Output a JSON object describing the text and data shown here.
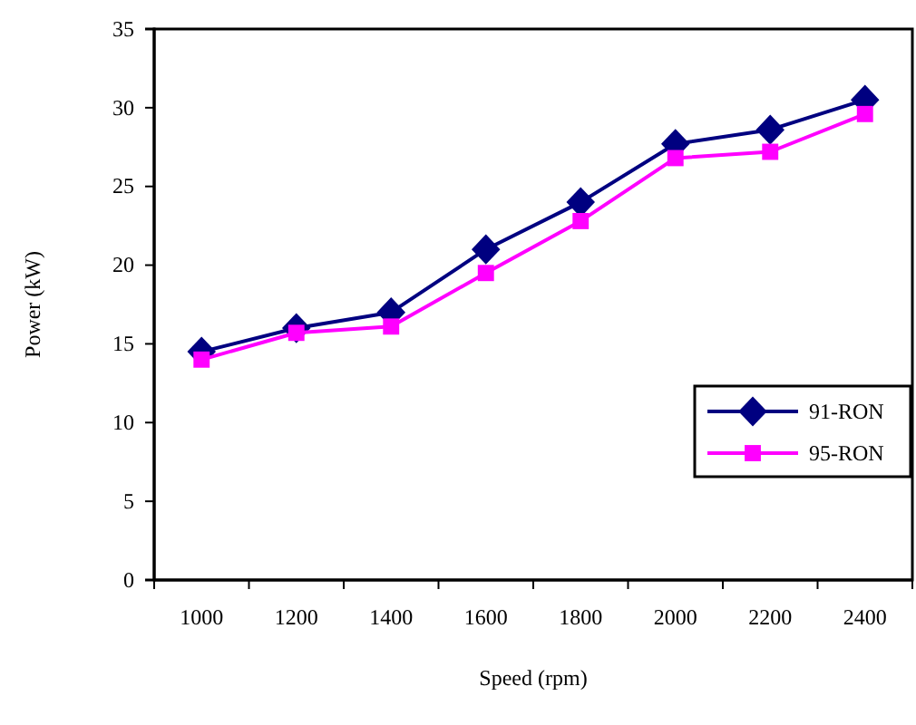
{
  "chart_data": {
    "type": "line",
    "xlabel": "Speed (rpm)",
    "ylabel": "Power (kW)",
    "categories": [
      "1000",
      "1200",
      "1400",
      "1600",
      "1800",
      "2000",
      "2200",
      "2400"
    ],
    "series": [
      {
        "name": "91-RON",
        "color": "#000080",
        "marker": "diamond",
        "values": [
          14.5,
          16.0,
          17.0,
          21.0,
          24.0,
          27.7,
          28.6,
          30.5
        ]
      },
      {
        "name": "95-RON",
        "color": "#ff00ff",
        "marker": "square",
        "values": [
          14.0,
          15.7,
          16.1,
          19.5,
          22.8,
          26.8,
          27.2,
          29.6
        ]
      }
    ],
    "ylim": [
      0,
      35
    ],
    "yticks": [
      0,
      5,
      10,
      15,
      20,
      25,
      30,
      35
    ],
    "grid": false,
    "legend": "right",
    "line_style": "solid"
  }
}
